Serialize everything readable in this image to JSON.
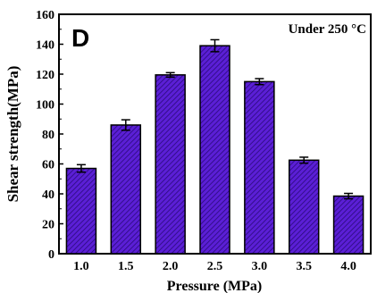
{
  "chart_data": {
    "type": "bar",
    "panel_label": "D",
    "annotation": "Under 250 °C",
    "xlabel": "Pressure (MPa)",
    "ylabel": "Shear strength(MPa)",
    "categories": [
      "1.0",
      "1.5",
      "2.0",
      "2.5",
      "3.0",
      "3.5",
      "4.0"
    ],
    "values": [
      57,
      86,
      119.5,
      139,
      115,
      62.5,
      38.5
    ],
    "errors": [
      2.5,
      3.5,
      1.5,
      4,
      2,
      2,
      1.8
    ],
    "ylim": [
      0,
      160
    ],
    "yticks": [
      "0",
      "20",
      "40",
      "60",
      "80",
      "100",
      "120",
      "140",
      "160"
    ],
    "grid": false,
    "bar_color": "#5b1fd6",
    "bar_hatch_color": "#2a0a7a"
  }
}
